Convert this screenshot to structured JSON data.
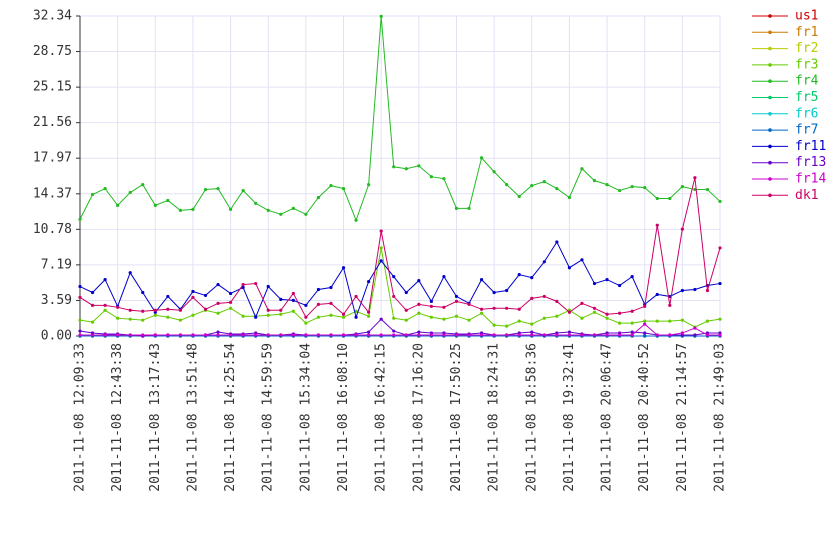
{
  "chart_data": {
    "type": "line",
    "categories": [
      "2011-11-08 12:09:33",
      null,
      null,
      "2011-11-08 12:43:38",
      null,
      null,
      "2011-11-08 13:17:43",
      null,
      null,
      "2011-11-08 13:51:48",
      null,
      null,
      "2011-11-08 14:25:54",
      null,
      null,
      "2011-11-08 14:59:59",
      null,
      null,
      "2011-11-08 15:34:04",
      null,
      null,
      "2011-11-08 16:08:10",
      null,
      null,
      "2011-11-08 16:42:15",
      null,
      null,
      "2011-11-08 17:16:20",
      null,
      null,
      "2011-11-08 17:50:25",
      null,
      null,
      "2011-11-08 18:24:31",
      null,
      null,
      "2011-11-08 18:58:36",
      null,
      null,
      "2011-11-08 19:32:41",
      null,
      null,
      "2011-11-08 20:06:47",
      null,
      null,
      "2011-11-08 20:40:52",
      null,
      null,
      "2011-11-08 21:14:57",
      null,
      null,
      "2011-11-08 21:49:03"
    ],
    "ylim": [
      0,
      32.34
    ],
    "yticks": [
      {
        "value": 0,
        "label": "0.00"
      },
      3.59,
      7.19,
      10.78,
      14.37,
      17.97,
      21.56,
      25.15,
      28.75,
      32.34
    ],
    "grid": true,
    "legend": "right",
    "series": [
      {
        "name": "us1",
        "color": "#cc0000",
        "values": [
          0,
          0,
          0,
          0,
          0,
          0,
          0,
          0,
          0,
          0,
          0,
          0,
          0,
          0,
          0,
          0,
          0,
          0,
          0,
          0,
          0,
          0,
          0,
          0,
          0,
          0,
          0,
          0,
          0,
          0,
          0,
          0,
          0,
          0,
          0,
          0,
          0,
          0,
          0,
          0,
          0,
          0,
          0,
          0,
          0,
          0,
          0,
          0,
          0,
          0,
          0,
          0
        ]
      },
      {
        "name": "fr1",
        "color": "#cc7a00",
        "values": [
          0,
          0,
          0,
          0,
          0,
          0,
          0,
          0,
          0,
          0,
          0,
          0,
          0,
          0,
          0,
          0,
          0,
          0,
          0,
          0,
          0,
          0,
          0,
          0,
          0,
          0,
          0,
          0,
          0,
          0,
          0,
          0,
          0,
          0,
          0,
          0,
          0,
          0,
          0,
          0,
          0,
          0,
          0,
          0,
          0,
          0,
          0,
          0,
          0,
          0,
          0,
          0
        ]
      },
      {
        "name": "fr2",
        "color": "#b8cc00",
        "values": [
          0,
          0,
          0,
          0,
          0,
          0,
          0,
          0,
          0,
          0,
          0,
          0,
          0,
          0,
          0,
          0,
          0,
          0,
          0,
          0,
          0,
          0,
          0,
          0,
          0,
          0,
          0,
          0,
          0,
          0,
          0,
          0,
          0,
          0,
          0,
          0,
          0,
          0,
          0,
          0,
          0,
          0,
          0,
          0,
          0,
          0,
          0,
          0,
          0,
          0,
          0,
          0
        ]
      },
      {
        "name": "fr3",
        "color": "#66cc00",
        "values": [
          1.6,
          1.4,
          2.6,
          1.8,
          1.7,
          1.6,
          2.1,
          1.9,
          1.6,
          2.1,
          2.6,
          2.3,
          2.8,
          2.0,
          2.0,
          2.1,
          2.2,
          2.5,
          1.3,
          1.9,
          2.1,
          1.9,
          2.5,
          2.0,
          8.9,
          1.8,
          1.6,
          2.3,
          1.9,
          1.7,
          2.0,
          1.6,
          2.3,
          1.1,
          1.0,
          1.5,
          1.2,
          1.8,
          2.0,
          2.6,
          1.8,
          2.4,
          1.8,
          1.3,
          1.3,
          1.5,
          1.5,
          1.5,
          1.6,
          0.9,
          1.5,
          1.7
        ]
      },
      {
        "name": "fr4",
        "color": "#22bb22",
        "values": [
          11.8,
          14.3,
          14.9,
          13.2,
          14.5,
          15.3,
          13.2,
          13.7,
          12.7,
          12.8,
          14.8,
          14.9,
          12.8,
          14.7,
          13.4,
          12.7,
          12.3,
          12.9,
          12.3,
          14.0,
          15.2,
          14.9,
          11.7,
          15.3,
          32.3,
          17.1,
          16.9,
          17.2,
          16.1,
          15.9,
          12.9,
          12.9,
          18.0,
          16.6,
          15.3,
          14.1,
          15.2,
          15.6,
          14.9,
          14.0,
          16.9,
          15.7,
          15.3,
          14.7,
          15.1,
          15.0,
          13.9,
          13.9,
          15.1,
          14.8,
          14.8,
          13.6
        ]
      },
      {
        "name": "fr5",
        "color": "#00cc66",
        "values": [
          0,
          0,
          0,
          0,
          0,
          0,
          0,
          0,
          0,
          0,
          0,
          0,
          0,
          0,
          0,
          0,
          0,
          0,
          0,
          0,
          0,
          0,
          0,
          0,
          0,
          0,
          0,
          0,
          0,
          0,
          0,
          0,
          0,
          0,
          0,
          0,
          0,
          0,
          0,
          0,
          0,
          0,
          0,
          0,
          0,
          0,
          0,
          0,
          0,
          0,
          0,
          0
        ]
      },
      {
        "name": "fr6",
        "color": "#00cccc",
        "values": [
          0,
          0,
          0,
          0,
          0,
          0,
          0,
          0,
          0,
          0,
          0,
          0,
          0,
          0,
          0,
          0,
          0,
          0,
          0,
          0,
          0,
          0,
          0,
          0,
          0,
          0,
          0,
          0,
          0,
          0,
          0,
          0,
          0,
          0,
          0,
          0,
          0,
          0,
          0,
          0,
          0,
          0,
          0,
          0,
          0,
          0,
          0,
          0,
          0,
          0,
          0,
          0
        ]
      },
      {
        "name": "fr7",
        "color": "#0066cc",
        "values": [
          0,
          0,
          0,
          0,
          0,
          0,
          0,
          0,
          0,
          0,
          0,
          0,
          0,
          0,
          0,
          0,
          0,
          0,
          0,
          0,
          0,
          0,
          0,
          0,
          0,
          0,
          0,
          0,
          0,
          0,
          0,
          0,
          0,
          0,
          0,
          0,
          0,
          0,
          0,
          0,
          0,
          0,
          0,
          0,
          0,
          0,
          0,
          0,
          0,
          0,
          0,
          0
        ]
      },
      {
        "name": "fr11",
        "color": "#0000cc",
        "values": [
          5.0,
          4.4,
          5.7,
          3.0,
          6.4,
          4.4,
          2.4,
          4.0,
          2.7,
          4.5,
          4.1,
          5.2,
          4.3,
          4.9,
          1.9,
          5.0,
          3.7,
          3.6,
          3.1,
          4.7,
          4.9,
          6.9,
          1.9,
          5.5,
          7.6,
          6.0,
          4.4,
          5.6,
          3.5,
          6.0,
          4.0,
          3.3,
          5.7,
          4.4,
          4.6,
          6.2,
          5.9,
          7.5,
          9.5,
          6.9,
          7.7,
          5.3,
          5.7,
          5.1,
          6.0,
          3.2,
          4.2,
          4.0,
          4.6,
          4.7,
          5.1,
          5.3
        ]
      },
      {
        "name": "fr13",
        "color": "#6600cc",
        "values": [
          0.5,
          0.3,
          0.2,
          0.2,
          0.1,
          0.0,
          0.1,
          0.1,
          0.1,
          0.1,
          0.1,
          0.4,
          0.2,
          0.2,
          0.3,
          0.1,
          0.1,
          0.2,
          0.1,
          0.1,
          0.1,
          0.1,
          0.2,
          0.4,
          1.7,
          0.5,
          0.1,
          0.4,
          0.3,
          0.3,
          0.2,
          0.2,
          0.3,
          0.1,
          0.1,
          0.3,
          0.4,
          0.1,
          0.3,
          0.4,
          0.2,
          0.1,
          0.3,
          0.3,
          0.4,
          0.3,
          0.1,
          0.1,
          0.1,
          0.1,
          0.3,
          0.3
        ]
      },
      {
        "name": "fr14",
        "color": "#cc00cc",
        "values": [
          0.1,
          0.1,
          0.1,
          0.1,
          0.1,
          0.1,
          0.1,
          0.1,
          0.1,
          0.1,
          0.1,
          0.1,
          0.1,
          0.1,
          0.1,
          0.1,
          0.1,
          0.1,
          0.1,
          0.1,
          0.1,
          0.1,
          0.1,
          0.1,
          0.1,
          0.1,
          0.1,
          0.1,
          0.1,
          0.1,
          0.1,
          0.1,
          0.1,
          0.1,
          0.1,
          0.1,
          0.1,
          0.1,
          0.1,
          0.1,
          0.1,
          0.1,
          0.1,
          0.1,
          0.1,
          1.2,
          0.1,
          0.1,
          0.3,
          0.8,
          0.1,
          0.1
        ]
      },
      {
        "name": "dk1",
        "color": "#cc0066",
        "values": [
          3.9,
          3.1,
          3.1,
          2.9,
          2.6,
          2.5,
          2.6,
          2.7,
          2.6,
          3.9,
          2.7,
          3.3,
          3.4,
          5.2,
          5.3,
          2.6,
          2.6,
          4.3,
          1.9,
          3.2,
          3.3,
          2.2,
          4.0,
          2.4,
          10.6,
          4.0,
          2.6,
          3.2,
          3.0,
          2.9,
          3.5,
          3.2,
          2.7,
          2.8,
          2.8,
          2.7,
          3.8,
          4.0,
          3.5,
          2.4,
          3.3,
          2.8,
          2.2,
          2.3,
          2.5,
          3.0,
          11.2,
          3.1,
          10.8,
          16.0,
          4.6,
          8.9
        ]
      }
    ]
  }
}
